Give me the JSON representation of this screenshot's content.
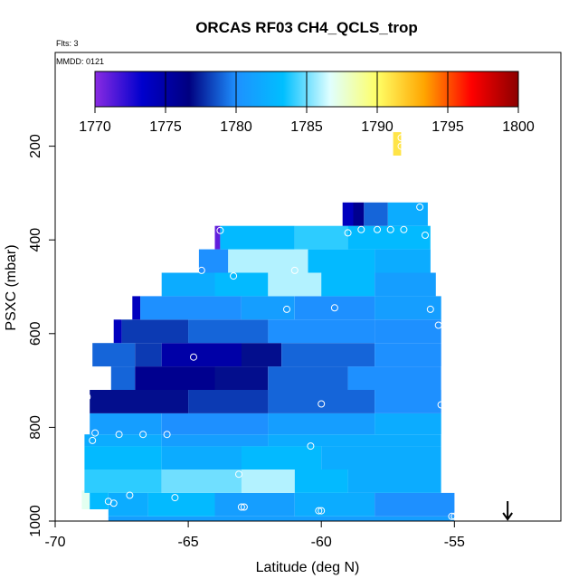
{
  "chart_data": {
    "type": "heatmap",
    "title": "ORCAS RF03 CH4_QCLS_trop",
    "flights_note": "Flts: 3",
    "date_note": "MMDD: 0121",
    "xlabel": "Latitude (deg N)",
    "ylabel": "PSXC (mbar)",
    "xlim": [
      -70,
      -51
    ],
    "ylim": [
      1000,
      0
    ],
    "x_ticks": [
      -70,
      -65,
      -60,
      -55
    ],
    "x_tick_labels": [
      "-70",
      "-65",
      "-60",
      "-55"
    ],
    "y_ticks": [
      200,
      400,
      600,
      800,
      1000
    ],
    "y_tick_labels": [
      "200",
      "400",
      "600",
      "800",
      "1000"
    ],
    "colorbar": {
      "min": 1770,
      "max": 1800,
      "ticks": [
        1770,
        1775,
        1780,
        1785,
        1790,
        1795,
        1800
      ],
      "tick_labels": [
        "1770",
        "1775",
        "1780",
        "1785",
        "1790",
        "1795",
        "1800"
      ],
      "colors": [
        "#8a2be2",
        "#0000cd",
        "#000080",
        "#1e90ff",
        "#00bfff",
        "#e0ffff",
        "#ffff66",
        "#ffa500",
        "#ff0000",
        "#8b0000"
      ]
    },
    "arrow_marker": {
      "latitude": -53.0,
      "pressure": 1000,
      "direction": "down"
    },
    "layers": [
      {
        "p_top": 990,
        "p_bot": 1000,
        "segments": [
          [
            -68.0,
            -55.0,
            1781
          ]
        ]
      },
      {
        "p_top": 940,
        "p_bot": 990,
        "segments": [
          [
            -68.0,
            -66.5,
            1782
          ],
          [
            -66.5,
            -64.0,
            1783
          ],
          [
            -64.0,
            -61.0,
            1781
          ],
          [
            -61.0,
            -58.0,
            1782
          ],
          [
            -58.0,
            -55.0,
            1780
          ]
        ]
      },
      {
        "p_top": 935,
        "p_bot": 975,
        "segments": [
          [
            -69.0,
            -68.7,
            1787
          ],
          [
            -68.7,
            -68.0,
            1783
          ]
        ]
      },
      {
        "p_top": 890,
        "p_bot": 940,
        "segments": [
          [
            -68.9,
            -66.0,
            1784
          ],
          [
            -66.0,
            -63.0,
            1785
          ],
          [
            -63.0,
            -61.0,
            1786
          ],
          [
            -61.0,
            -59.0,
            1783
          ],
          [
            -59.0,
            -55.5,
            1782
          ]
        ]
      },
      {
        "p_top": 840,
        "p_bot": 890,
        "segments": [
          [
            -68.9,
            -66.0,
            1783
          ],
          [
            -66.0,
            -63.0,
            1782
          ],
          [
            -63.0,
            -60.0,
            1783
          ],
          [
            -60.0,
            -55.5,
            1782
          ]
        ]
      },
      {
        "p_top": 815,
        "p_bot": 840,
        "segments": [
          [
            -68.9,
            -66.0,
            1782
          ],
          [
            -66.0,
            -62.0,
            1781
          ],
          [
            -62.0,
            -55.5,
            1782
          ]
        ]
      },
      {
        "p_top": 770,
        "p_bot": 815,
        "segments": [
          [
            -68.7,
            -66.0,
            1781
          ],
          [
            -66.0,
            -62.0,
            1780
          ],
          [
            -62.0,
            -58.0,
            1781
          ],
          [
            -58.0,
            -55.5,
            1782
          ]
        ]
      },
      {
        "p_top": 720,
        "p_bot": 770,
        "segments": [
          [
            -68.7,
            -65.0,
            1777
          ],
          [
            -65.0,
            -62.0,
            1778
          ],
          [
            -62.0,
            -58.0,
            1779
          ],
          [
            -58.0,
            -55.5,
            1780
          ]
        ]
      },
      {
        "p_top": 670,
        "p_bot": 720,
        "segments": [
          [
            -67.9,
            -67.0,
            1779
          ],
          [
            -67.0,
            -64.0,
            1776
          ],
          [
            -64.0,
            -62.0,
            1777
          ],
          [
            -62.0,
            -59.0,
            1779
          ],
          [
            -59.0,
            -55.5,
            1780
          ]
        ]
      },
      {
        "p_top": 620,
        "p_bot": 670,
        "segments": [
          [
            -68.6,
            -67.0,
            1779
          ],
          [
            -67.0,
            -66.0,
            1778
          ],
          [
            -66.0,
            -63.0,
            1775
          ],
          [
            -63.0,
            -61.5,
            1777
          ],
          [
            -61.5,
            -58.0,
            1779
          ],
          [
            -58.0,
            -55.5,
            1780
          ]
        ]
      },
      {
        "p_top": 570,
        "p_bot": 620,
        "segments": [
          [
            -67.8,
            -67.5,
            1774
          ],
          [
            -67.5,
            -65.0,
            1778
          ],
          [
            -65.0,
            -62.0,
            1779
          ],
          [
            -62.0,
            -58.0,
            1780
          ],
          [
            -58.0,
            -55.5,
            1780
          ]
        ]
      },
      {
        "p_top": 520,
        "p_bot": 570,
        "segments": [
          [
            -67.1,
            -66.8,
            1774
          ],
          [
            -66.8,
            -63.0,
            1780
          ],
          [
            -63.0,
            -61.0,
            1781
          ],
          [
            -61.0,
            -58.0,
            1780
          ],
          [
            -58.0,
            -55.5,
            1781
          ]
        ]
      },
      {
        "p_top": 470,
        "p_bot": 520,
        "segments": [
          [
            -66.0,
            -64.0,
            1782
          ],
          [
            -64.0,
            -62.0,
            1783
          ],
          [
            -62.0,
            -60.0,
            1786
          ],
          [
            -60.0,
            -58.0,
            1783
          ],
          [
            -58.0,
            -55.7,
            1781
          ]
        ]
      },
      {
        "p_top": 420,
        "p_bot": 470,
        "segments": [
          [
            -64.6,
            -63.5,
            1780
          ],
          [
            -63.5,
            -60.5,
            1786
          ],
          [
            -60.5,
            -58.0,
            1783
          ],
          [
            -58.0,
            -55.9,
            1782
          ]
        ]
      },
      {
        "p_top": 370,
        "p_bot": 420,
        "segments": [
          [
            -64.0,
            -63.8,
            1771
          ],
          [
            -63.8,
            -61.0,
            1783
          ],
          [
            -61.0,
            -59.0,
            1784
          ],
          [
            -59.0,
            -55.9,
            1783
          ]
        ]
      },
      {
        "p_top": 320,
        "p_bot": 370,
        "segments": [
          [
            -59.2,
            -58.8,
            1774
          ],
          [
            -58.8,
            -58.4,
            1776
          ],
          [
            -58.4,
            -57.5,
            1779
          ],
          [
            -57.5,
            -56.0,
            1782
          ]
        ]
      },
      {
        "p_top": 170,
        "p_bot": 220,
        "segments": [
          [
            -57.3,
            -57.0,
            1791
          ]
        ]
      }
    ],
    "sample_points": [
      [
        -63.8,
        380
      ],
      [
        -59.0,
        385
      ],
      [
        -58.5,
        378
      ],
      [
        -57.9,
        378
      ],
      [
        -57.4,
        378
      ],
      [
        -56.9,
        378
      ],
      [
        -56.1,
        390
      ],
      [
        -56.3,
        330
      ],
      [
        -57.0,
        182
      ],
      [
        -57.0,
        200
      ],
      [
        -64.5,
        465
      ],
      [
        -63.3,
        477
      ],
      [
        -61.0,
        465
      ],
      [
        -61.3,
        548
      ],
      [
        -59.5,
        545
      ],
      [
        -55.9,
        548
      ],
      [
        -55.6,
        582
      ],
      [
        -64.8,
        650
      ],
      [
        -68.8,
        735
      ],
      [
        -60.0,
        750
      ],
      [
        -55.5,
        752
      ],
      [
        -68.5,
        812
      ],
      [
        -67.6,
        815
      ],
      [
        -66.7,
        815
      ],
      [
        -65.8,
        815
      ],
      [
        -68.6,
        828
      ],
      [
        -60.4,
        840
      ],
      [
        -63.1,
        900
      ],
      [
        -67.2,
        945
      ],
      [
        -65.5,
        950
      ],
      [
        -68.0,
        958
      ],
      [
        -67.8,
        962
      ],
      [
        -63.0,
        970
      ],
      [
        -62.9,
        970
      ],
      [
        -60.1,
        978
      ],
      [
        -60.0,
        978
      ],
      [
        -55.1,
        990
      ],
      [
        -55.0,
        990
      ]
    ]
  }
}
